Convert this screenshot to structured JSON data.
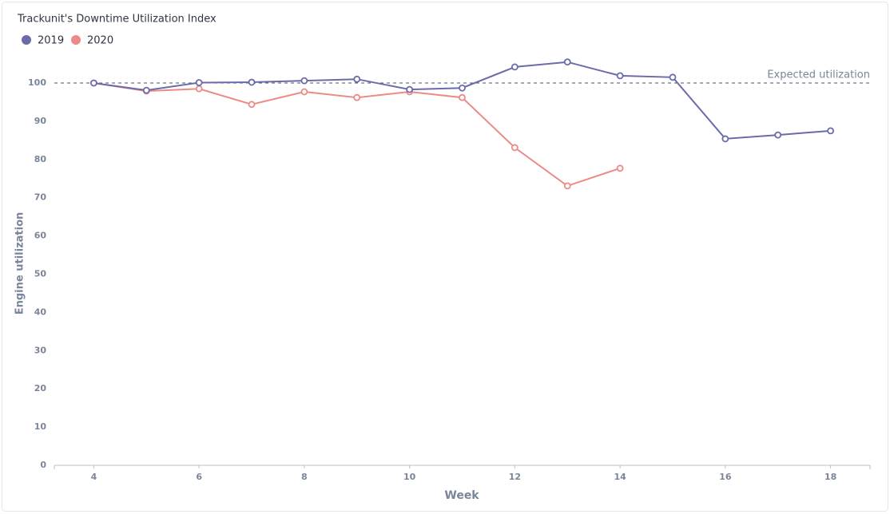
{
  "chart_data": {
    "type": "line",
    "title": "Trackunit's Downtime Utilization Index",
    "x": [
      4,
      5,
      6,
      7,
      8,
      9,
      10,
      11,
      12,
      13,
      14,
      15,
      16,
      17,
      18
    ],
    "series": [
      {
        "name": "2019",
        "color": "#6b6bab",
        "values": [
          100,
          98.1,
          100.1,
          100.2,
          100.6,
          101.0,
          98.3,
          98.7,
          104.2,
          105.5,
          101.9,
          101.5,
          85.4,
          86.4,
          87.5
        ]
      },
      {
        "name": "2020",
        "color": "#ec8a87",
        "values": [
          100,
          97.9,
          98.5,
          94.4,
          97.7,
          96.2,
          97.7,
          96.2,
          83.1,
          73.1,
          77.7,
          null,
          null,
          null,
          null
        ]
      }
    ],
    "xlabel": "Week",
    "ylabel": "Engine utilization",
    "xlim": [
      3.25,
      18.75
    ],
    "xticks": [
      4,
      6,
      8,
      10,
      12,
      14,
      16,
      18
    ],
    "ylim": [
      0,
      100
    ],
    "yticks": [
      0,
      10,
      20,
      30,
      40,
      50,
      60,
      70,
      80,
      90,
      100
    ],
    "reference_line": {
      "value": 100,
      "label": "Expected utilization"
    },
    "legend": "top-left",
    "grid": false
  }
}
